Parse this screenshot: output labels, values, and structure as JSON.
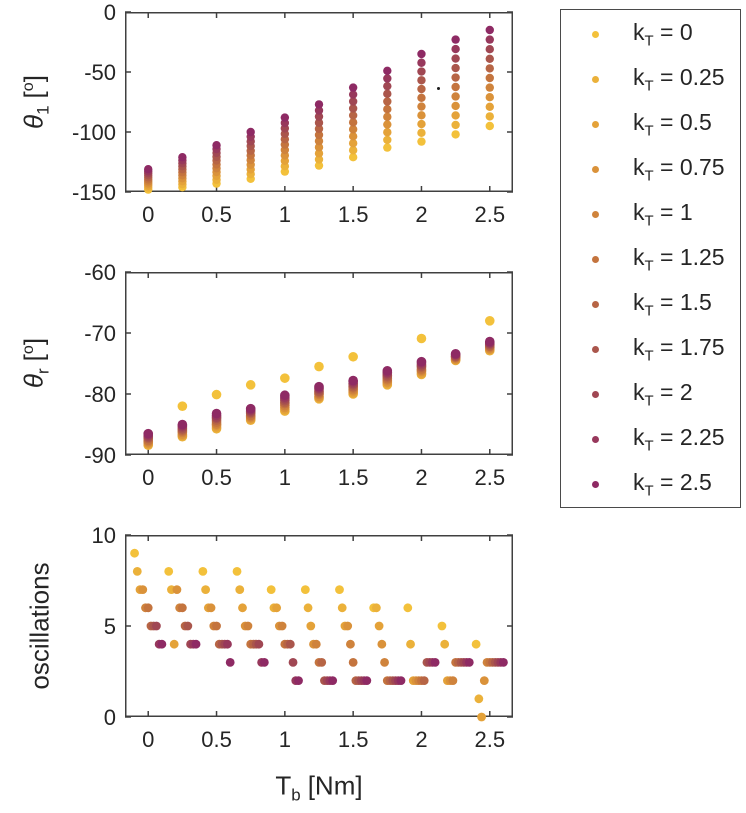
{
  "figure": {
    "background": "#ffffff",
    "axis_color": "#404040",
    "text_color": "#252525"
  },
  "colors": [
    "#F3C13B",
    "#EBB13A",
    "#E4A239",
    "#DA923A",
    "#CF833C",
    "#C4743E",
    "#B76545",
    "#AA564C",
    "#A04753",
    "#97385C",
    "#8E2A64"
  ],
  "labels": {
    "theta1": {
      "sym": "θ",
      "sub": "1",
      "open": "[",
      "deg": "o",
      "close": "]"
    },
    "thetar": {
      "sym": "θ",
      "sub": "r",
      "open": "[",
      "deg": "o",
      "close": "]"
    },
    "osc": {
      "text": "oscillations"
    },
    "xaxis": {
      "main": "T",
      "sub": "b",
      "unit": "[Nm]"
    }
  },
  "legend": {
    "entries": [
      {
        "pre": "k",
        "sub": "T",
        "eq": " = ",
        "value": "0"
      },
      {
        "pre": "k",
        "sub": "T",
        "eq": " = ",
        "value": "0.25"
      },
      {
        "pre": "k",
        "sub": "T",
        "eq": " = ",
        "value": "0.5"
      },
      {
        "pre": "k",
        "sub": "T",
        "eq": " = ",
        "value": "0.75"
      },
      {
        "pre": "k",
        "sub": "T",
        "eq": " = ",
        "value": "1"
      },
      {
        "pre": "k",
        "sub": "T",
        "eq": " = ",
        "value": "1.25"
      },
      {
        "pre": "k",
        "sub": "T",
        "eq": " = ",
        "value": "1.5"
      },
      {
        "pre": "k",
        "sub": "T",
        "eq": " = ",
        "value": "1.75"
      },
      {
        "pre": "k",
        "sub": "T",
        "eq": " = ",
        "value": "2"
      },
      {
        "pre": "k",
        "sub": "T",
        "eq": " = ",
        "value": "2.25"
      },
      {
        "pre": "k",
        "sub": "T",
        "eq": " = ",
        "value": "2.5"
      }
    ]
  },
  "chart_data": [
    {
      "id": "theta1",
      "type": "scatter",
      "title": "",
      "ylabel": "theta_1 [deg]",
      "xlim": [
        -0.17,
        2.67
      ],
      "ylim": [
        -150,
        0
      ],
      "xticks": [
        0,
        0.5,
        1,
        1.5,
        2,
        2.5
      ],
      "xticklabels": [
        "0",
        "0.5",
        "1",
        "1.5",
        "2",
        "2.5"
      ],
      "yticks": [
        0,
        -50,
        -100,
        -150
      ],
      "yticklabels": [
        "0",
        "-50",
        "-100",
        "-150"
      ],
      "x": [
        0,
        0.25,
        0.5,
        0.75,
        1,
        1.25,
        1.5,
        1.75,
        2,
        2.25,
        2.5
      ],
      "series": [
        {
          "name": "k_T = 0",
          "values": [
            -148,
            -146,
            -143,
            -139,
            -133,
            -128,
            -121,
            -113,
            -108,
            -102,
            -95
          ]
        },
        {
          "name": "k_T = 0.25",
          "values": [
            -146.3,
            -143.5,
            -139.8,
            -135.1,
            -128.5,
            -122.9,
            -115.2,
            -106.6,
            -100.7,
            -94.1,
            -87
          ]
        },
        {
          "name": "k_T = 0.5",
          "values": [
            -144.6,
            -141,
            -136.6,
            -131.2,
            -124,
            -117.8,
            -109.4,
            -100.2,
            -93.4,
            -86.2,
            -79
          ]
        },
        {
          "name": "k_T = 0.75",
          "values": [
            -142.9,
            -138.5,
            -133.4,
            -127.3,
            -119.5,
            -112.7,
            -103.6,
            -93.8,
            -86.1,
            -78.3,
            -71
          ]
        },
        {
          "name": "k_T = 1",
          "values": [
            -141.2,
            -136,
            -130.2,
            -123.4,
            -115,
            -107.6,
            -97.8,
            -87.4,
            -78.8,
            -70.4,
            -63
          ]
        },
        {
          "name": "k_T = 1.25",
          "values": [
            -139.5,
            -133.5,
            -127,
            -119.5,
            -110.5,
            -102.5,
            -92,
            -81,
            -71.5,
            -62.5,
            -55
          ]
        },
        {
          "name": "k_T = 1.5",
          "values": [
            -137.8,
            -131,
            -123.8,
            -115.6,
            -106,
            -97.4,
            -86.2,
            -74.6,
            -64.2,
            -54.6,
            -47
          ]
        },
        {
          "name": "k_T = 1.75",
          "values": [
            -136.1,
            -128.5,
            -120.6,
            -111.7,
            -101.5,
            -92.3,
            -80.4,
            -68.2,
            -56.9,
            -46.7,
            -39
          ]
        },
        {
          "name": "k_T = 2",
          "values": [
            -134.4,
            -126,
            -117.4,
            -107.8,
            -97,
            -87.2,
            -74.6,
            -61.8,
            -49.6,
            -38.8,
            -31
          ]
        },
        {
          "name": "k_T = 2.25",
          "values": [
            -132.7,
            -123.5,
            -114.2,
            -103.9,
            -92.5,
            -82.1,
            -68.8,
            -55.4,
            -42.3,
            -30.9,
            -23
          ]
        },
        {
          "name": "k_T = 2.5",
          "values": [
            -131,
            -121,
            -111,
            -100,
            -88,
            -77,
            -63,
            -49,
            -35,
            -23,
            -15
          ]
        }
      ]
    },
    {
      "id": "thetar",
      "type": "scatter",
      "title": "",
      "ylabel": "theta_r [deg]",
      "xlim": [
        -0.17,
        2.67
      ],
      "ylim": [
        -90,
        -60
      ],
      "xticks": [
        0,
        0.5,
        1,
        1.5,
        2,
        2.5
      ],
      "xticklabels": [
        "0",
        "0.5",
        "1",
        "1.5",
        "2",
        "2.5"
      ],
      "yticks": [
        -60,
        -70,
        -80,
        -90
      ],
      "yticklabels": [
        "-60",
        "-70",
        "-80",
        "-90"
      ],
      "x": [
        0,
        0.25,
        0.5,
        0.75,
        1,
        1.25,
        1.5,
        1.75,
        2,
        2.25,
        2.5
      ],
      "series": [
        {
          "name": "k_T = 0",
          "values": [
            -87.3,
            -82.0,
            -80.1,
            -78.5,
            -77.4,
            -75.5,
            -73.9,
            -77.0,
            -70.9,
            -73.9,
            -68.0
          ]
        },
        {
          "name": "k_T = 0.25",
          "values": [
            -88.4,
            -87.0,
            -85.7,
            -84.3,
            -82.8,
            -80.8,
            -80.0,
            -78.5,
            -76.8,
            -74.5,
            -72.9
          ]
        },
        {
          "name": "k_T = 0.5",
          "values": [
            -88.2,
            -86.8,
            -85.4,
            -84.1,
            -82.5,
            -80.6,
            -79.8,
            -78.2,
            -76.6,
            -74.4,
            -72.7
          ]
        },
        {
          "name": "k_T = 0.75",
          "values": [
            -88.0,
            -86.6,
            -85.1,
            -83.9,
            -82.2,
            -80.4,
            -79.5,
            -78.0,
            -76.3,
            -74.3,
            -72.6
          ]
        },
        {
          "name": "k_T = 1",
          "values": [
            -87.8,
            -86.3,
            -84.9,
            -83.7,
            -81.9,
            -80.1,
            -79.3,
            -77.7,
            -76.1,
            -74.1,
            -72.4
          ]
        },
        {
          "name": "k_T = 1.25",
          "values": [
            -87.6,
            -86.1,
            -84.6,
            -83.5,
            -81.6,
            -79.9,
            -79.0,
            -77.5,
            -75.9,
            -74.0,
            -72.2
          ]
        },
        {
          "name": "k_T = 1.5",
          "values": [
            -87.3,
            -85.9,
            -84.3,
            -83.2,
            -81.4,
            -79.7,
            -78.8,
            -77.2,
            -75.6,
            -73.9,
            -72.1
          ]
        },
        {
          "name": "k_T = 1.75",
          "values": [
            -87.1,
            -85.7,
            -84.0,
            -83.0,
            -81.1,
            -79.5,
            -78.5,
            -77.0,
            -75.4,
            -73.8,
            -71.9
          ]
        },
        {
          "name": "k_T = 2",
          "values": [
            -86.9,
            -85.4,
            -83.8,
            -82.8,
            -80.8,
            -79.2,
            -78.3,
            -76.7,
            -75.2,
            -73.6,
            -71.7
          ]
        },
        {
          "name": "k_T = 2.25",
          "values": [
            -86.7,
            -85.2,
            -83.5,
            -82.6,
            -80.5,
            -79.0,
            -78.0,
            -76.5,
            -74.9,
            -73.5,
            -71.6
          ]
        },
        {
          "name": "k_T = 2.5",
          "values": [
            -86.5,
            -85.0,
            -83.2,
            -82.4,
            -80.2,
            -78.8,
            -77.8,
            -76.2,
            -74.7,
            -73.4,
            -71.4
          ]
        }
      ]
    },
    {
      "id": "osc",
      "type": "scatter",
      "title": "",
      "ylabel": "oscillations",
      "xlabel": "T_b [Nm]",
      "xlim": [
        -0.17,
        2.67
      ],
      "ylim": [
        0,
        10
      ],
      "xticks": [
        0,
        0.5,
        1,
        1.5,
        2,
        2.5
      ],
      "xticklabels": [
        "0",
        "0.5",
        "1",
        "1.5",
        "2",
        "2.5"
      ],
      "yticks": [
        0,
        5,
        10
      ],
      "yticklabels": [
        "0",
        "5",
        "10"
      ],
      "x_jitter": 0.02,
      "x": [
        0,
        0.25,
        0.5,
        0.75,
        1,
        1.25,
        1.5,
        1.75,
        2,
        2.25,
        2.5
      ],
      "series": [
        {
          "name": "k_T = 0",
          "values": [
            9,
            8,
            8,
            8,
            7,
            7,
            7,
            6,
            6,
            5,
            4
          ]
        },
        {
          "name": "k_T = 0.25",
          "values": [
            8,
            7,
            7,
            7,
            6,
            6,
            6,
            6,
            4,
            4,
            1
          ]
        },
        {
          "name": "k_T = 0.5",
          "values": [
            7,
            4,
            6,
            6,
            6,
            5,
            5,
            5,
            2,
            2,
            0
          ]
        },
        {
          "name": "k_T = 0.75",
          "values": [
            7,
            7,
            6,
            5,
            5,
            4,
            5,
            4,
            2,
            2,
            2
          ]
        },
        {
          "name": "k_T = 1",
          "values": [
            6,
            6,
            5,
            5,
            5,
            4,
            4,
            3,
            2,
            2,
            3
          ]
        },
        {
          "name": "k_T = 1.25",
          "values": [
            6,
            6,
            5,
            4,
            4,
            3,
            3,
            2,
            2,
            3,
            3
          ]
        },
        {
          "name": "k_T = 1.5",
          "values": [
            5,
            5,
            4,
            4,
            4,
            3,
            2,
            2,
            2,
            3,
            3
          ]
        },
        {
          "name": "k_T = 1.75",
          "values": [
            5,
            5,
            4,
            4,
            4,
            2,
            2,
            2,
            3,
            3,
            3
          ]
        },
        {
          "name": "k_T = 2",
          "values": [
            5,
            4,
            4,
            4,
            3,
            2,
            2,
            2,
            3,
            3,
            3
          ]
        },
        {
          "name": "k_T = 2.25",
          "values": [
            4,
            4,
            4,
            3,
            2,
            2,
            2,
            2,
            3,
            3,
            3
          ]
        },
        {
          "name": "k_T = 2.5",
          "values": [
            4,
            4,
            3,
            3,
            2,
            2,
            2,
            2,
            3,
            3,
            3
          ]
        }
      ]
    }
  ]
}
